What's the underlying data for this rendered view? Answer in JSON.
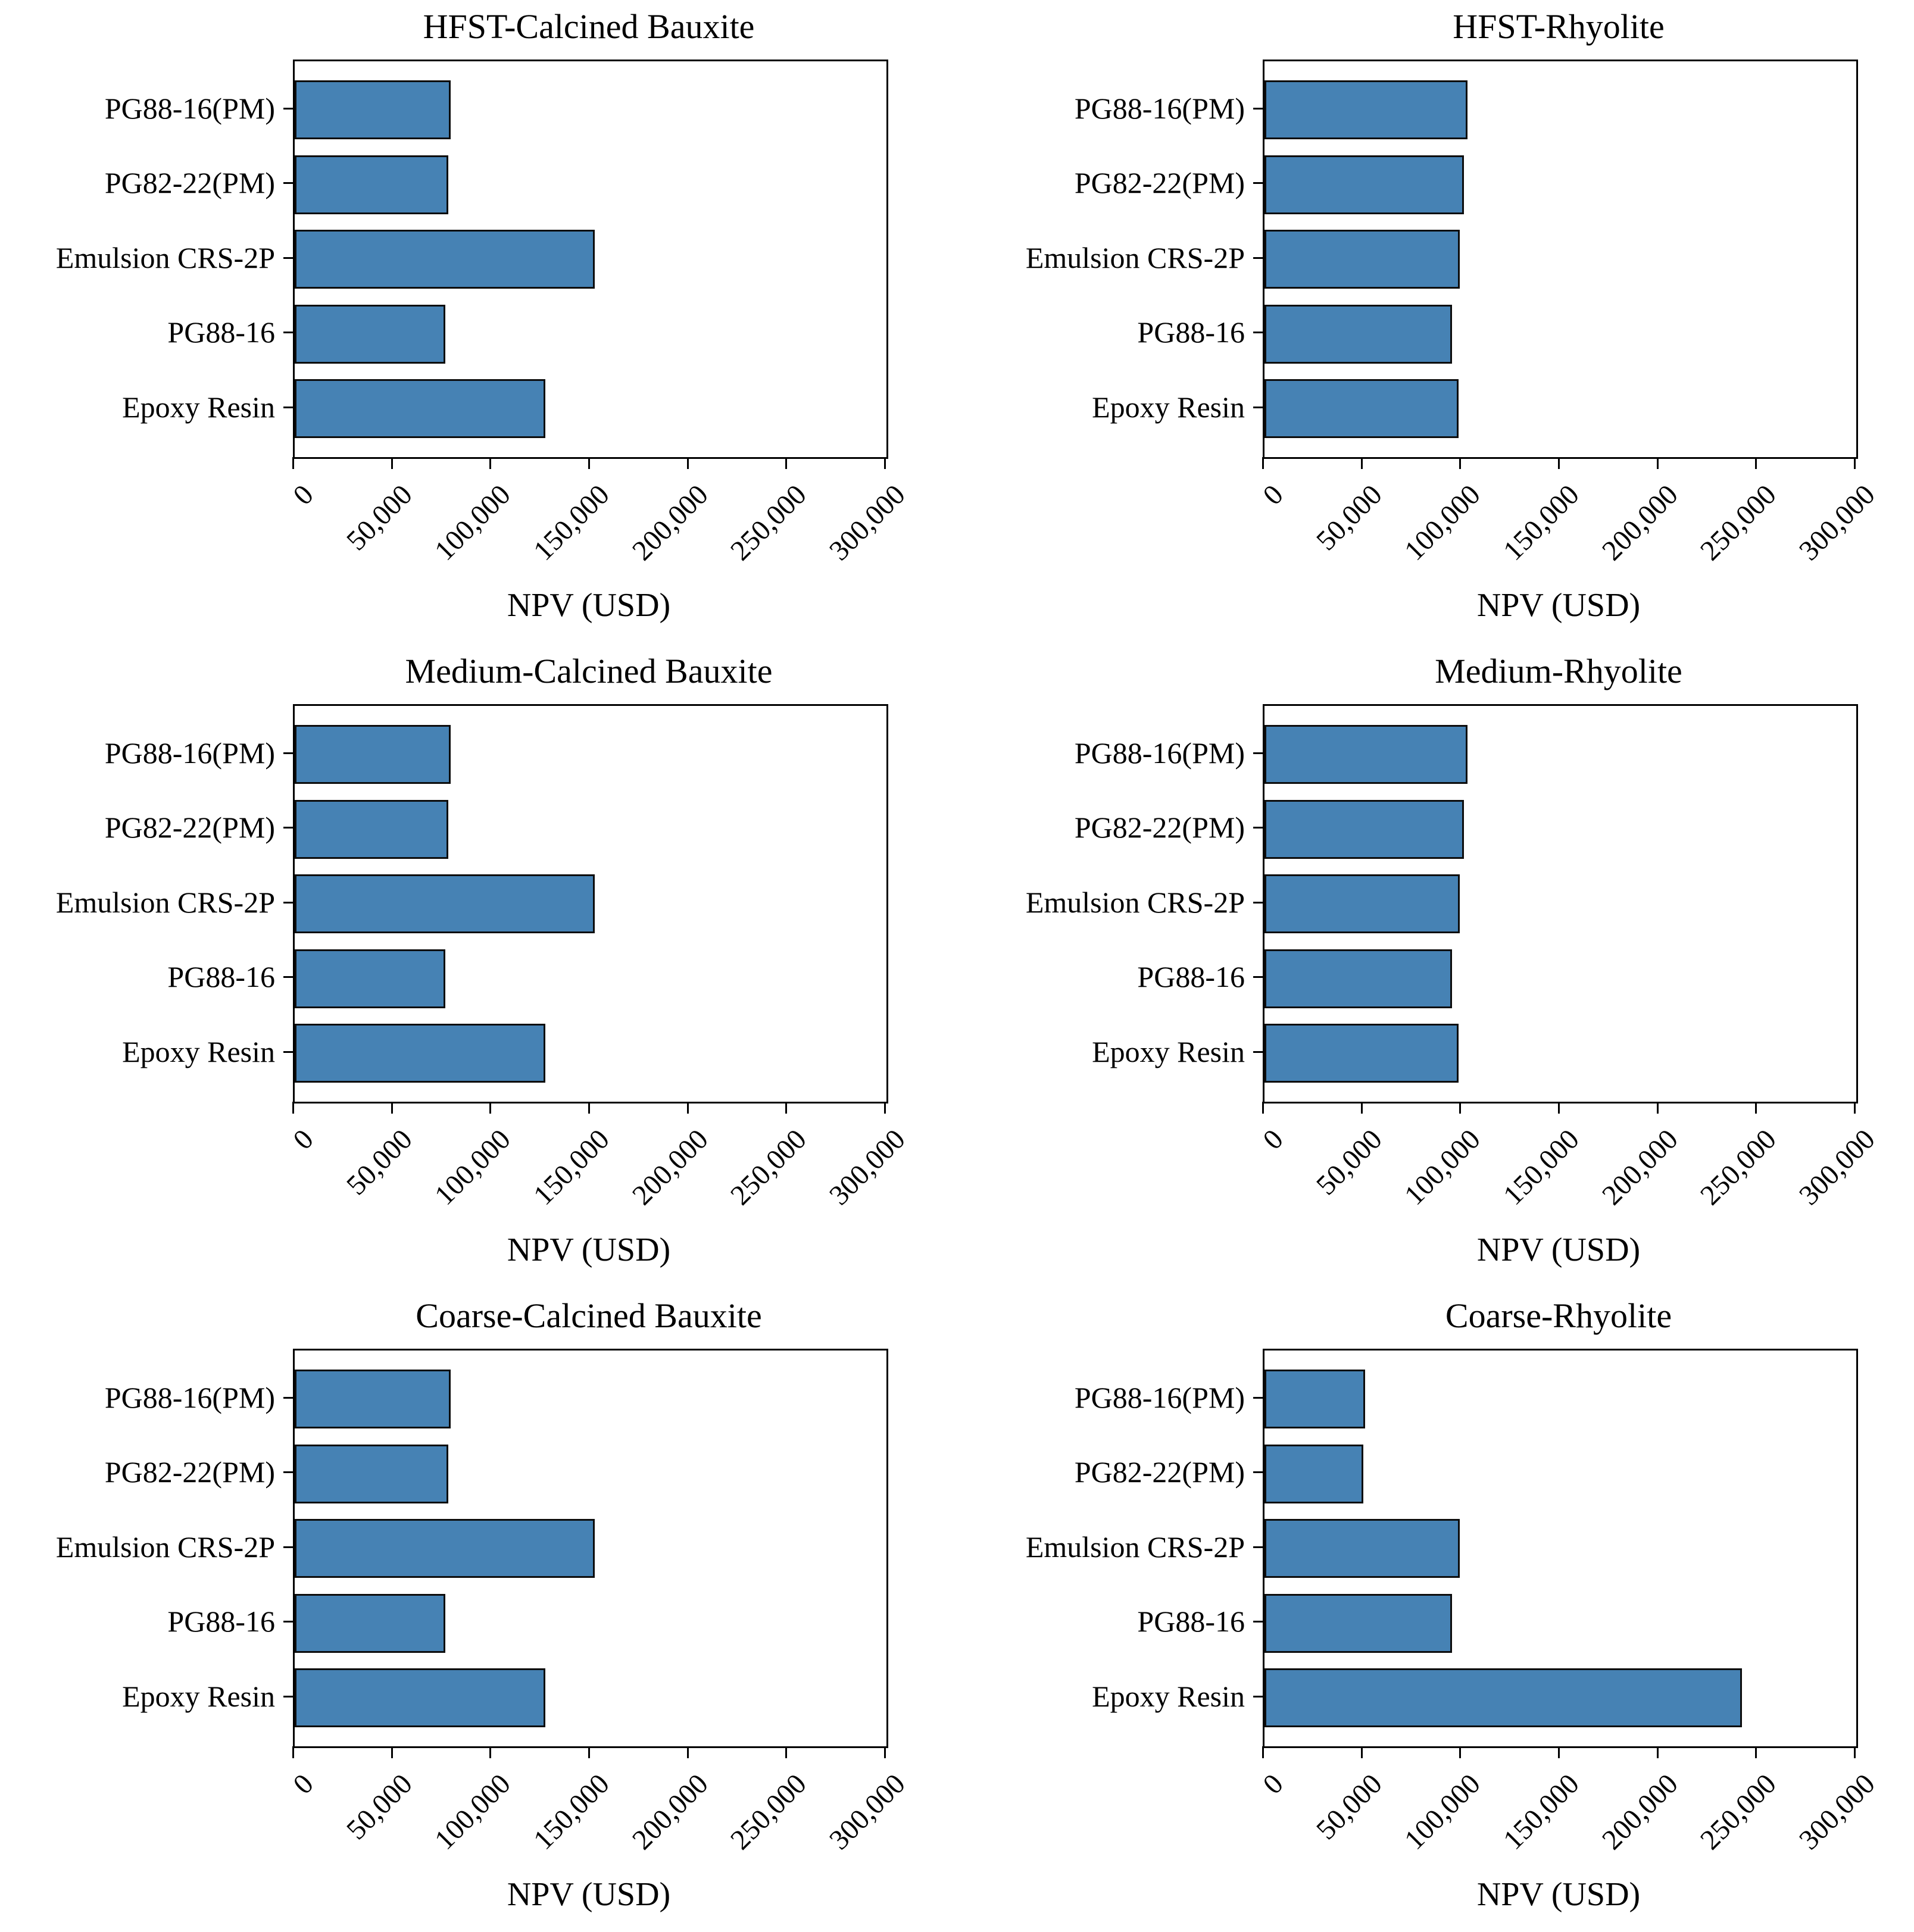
{
  "figure": {
    "description": "Grid of six horizontal bar charts comparing NPV of pavement treatment binders for two aggregate types and three texture levels",
    "bar_color": "#4682B4",
    "bar_edge_color": "#0d0d0d",
    "background_color": "#ffffff"
  },
  "chart_data": [
    {
      "type": "bar",
      "orientation": "horizontal",
      "title": "HFST-Calcined Bauxite",
      "xlabel": "NPV (USD)",
      "categories": [
        "PG88-16(PM)",
        "PG82-22(PM)",
        "Emulsion CRS-2P",
        "PG88-16",
        "Epoxy Resin"
      ],
      "values": [
        79000,
        78000,
        152000,
        76500,
        127000
      ],
      "xlim": [
        0,
        300000
      ],
      "x_tick_values": [
        0,
        50000,
        100000,
        150000,
        200000,
        250000,
        300000
      ],
      "x_tick_labels": [
        "0",
        "50,000",
        "100,000",
        "150,000",
        "200,000",
        "250,000",
        "300,000"
      ],
      "grid": false,
      "legend": null
    },
    {
      "type": "bar",
      "orientation": "horizontal",
      "title": "HFST-Rhyolite",
      "xlabel": "NPV (USD)",
      "categories": [
        "PG88-16(PM)",
        "PG82-22(PM)",
        "Emulsion CRS-2P",
        "PG88-16",
        "Epoxy Resin"
      ],
      "values": [
        103000,
        101000,
        99000,
        95000,
        98500
      ],
      "xlim": [
        0,
        300000
      ],
      "x_tick_values": [
        0,
        50000,
        100000,
        150000,
        200000,
        250000,
        300000
      ],
      "x_tick_labels": [
        "0",
        "50,000",
        "100,000",
        "150,000",
        "200,000",
        "250,000",
        "300,000"
      ],
      "grid": false,
      "legend": null
    },
    {
      "type": "bar",
      "orientation": "horizontal",
      "title": "Medium-Calcined Bauxite",
      "xlabel": "NPV (USD)",
      "categories": [
        "PG88-16(PM)",
        "PG82-22(PM)",
        "Emulsion CRS-2P",
        "PG88-16",
        "Epoxy Resin"
      ],
      "values": [
        79000,
        78000,
        152000,
        76500,
        127000
      ],
      "xlim": [
        0,
        300000
      ],
      "x_tick_values": [
        0,
        50000,
        100000,
        150000,
        200000,
        250000,
        300000
      ],
      "x_tick_labels": [
        "0",
        "50,000",
        "100,000",
        "150,000",
        "200,000",
        "250,000",
        "300,000"
      ],
      "grid": false,
      "legend": null
    },
    {
      "type": "bar",
      "orientation": "horizontal",
      "title": "Medium-Rhyolite",
      "xlabel": "NPV (USD)",
      "categories": [
        "PG88-16(PM)",
        "PG82-22(PM)",
        "Emulsion CRS-2P",
        "PG88-16",
        "Epoxy Resin"
      ],
      "values": [
        103000,
        101000,
        99000,
        95000,
        98500
      ],
      "xlim": [
        0,
        300000
      ],
      "x_tick_values": [
        0,
        50000,
        100000,
        150000,
        200000,
        250000,
        300000
      ],
      "x_tick_labels": [
        "0",
        "50,000",
        "100,000",
        "150,000",
        "200,000",
        "250,000",
        "300,000"
      ],
      "grid": false,
      "legend": null
    },
    {
      "type": "bar",
      "orientation": "horizontal",
      "title": "Coarse-Calcined Bauxite",
      "xlabel": "NPV (USD)",
      "categories": [
        "PG88-16(PM)",
        "PG82-22(PM)",
        "Emulsion CRS-2P",
        "PG88-16",
        "Epoxy Resin"
      ],
      "values": [
        79000,
        78000,
        152000,
        76500,
        127000
      ],
      "xlim": [
        0,
        300000
      ],
      "x_tick_values": [
        0,
        50000,
        100000,
        150000,
        200000,
        250000,
        300000
      ],
      "x_tick_labels": [
        "0",
        "50,000",
        "100,000",
        "150,000",
        "200,000",
        "250,000",
        "300,000"
      ],
      "grid": false,
      "legend": null
    },
    {
      "type": "bar",
      "orientation": "horizontal",
      "title": "Coarse-Rhyolite",
      "xlabel": "NPV (USD)",
      "categories": [
        "PG88-16(PM)",
        "PG82-22(PM)",
        "Emulsion CRS-2P",
        "PG88-16",
        "Epoxy Resin"
      ],
      "values": [
        51000,
        50000,
        99000,
        95000,
        242000
      ],
      "xlim": [
        0,
        300000
      ],
      "x_tick_values": [
        0,
        50000,
        100000,
        150000,
        200000,
        250000,
        300000
      ],
      "x_tick_labels": [
        "0",
        "50,000",
        "100,000",
        "150,000",
        "200,000",
        "250,000",
        "300,000"
      ],
      "grid": false,
      "legend": null
    }
  ]
}
